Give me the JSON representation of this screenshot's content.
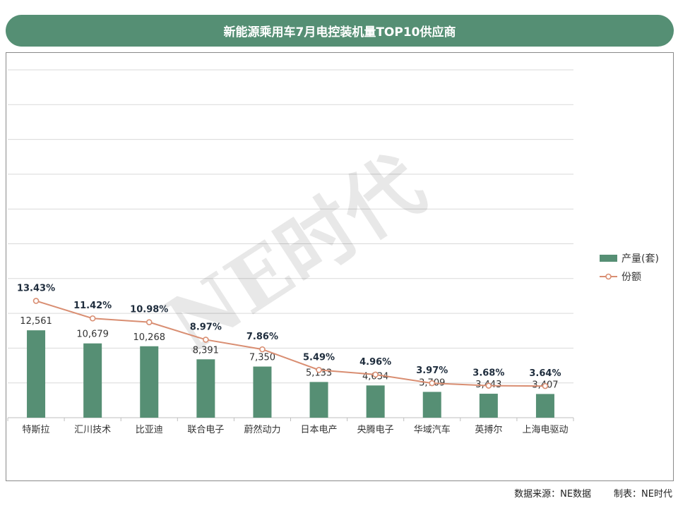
{
  "title": "新能源乘用车7月电控装机量TOP10供应商",
  "watermark": "NE时代",
  "footer": {
    "source": "数据来源：NE数据",
    "maker": "制表：NE时代"
  },
  "colors": {
    "title_bg": "#558f74",
    "bar": "#568f74",
    "line": "#d98e72",
    "marker_fill": "#ffffff",
    "grid": "#d9d9d9",
    "bar_label": "#333333",
    "line_label": "#1f2d3d"
  },
  "chart_data": {
    "type": "bar",
    "title": "新能源乘用车7月电控装机量TOP10供应商",
    "categories": [
      "特斯拉",
      "汇川技术",
      "比亚迪",
      "联合电子",
      "蔚然动力",
      "日本电产",
      "央腾电子",
      "华域汽车",
      "英搏尔",
      "上海电驱动"
    ],
    "series": [
      {
        "name": "产量(套)",
        "type": "bar",
        "values": [
          12561,
          10679,
          10268,
          8391,
          7350,
          5133,
          4634,
          3709,
          3443,
          3407
        ],
        "labels": [
          "12,561",
          "10,679",
          "10,268",
          "8,391",
          "7,350",
          "5,133",
          "4,634",
          "3,709",
          "3,443",
          "3,407"
        ]
      },
      {
        "name": "份额",
        "type": "line",
        "values": [
          13.43,
          11.42,
          10.98,
          8.97,
          7.86,
          5.49,
          4.96,
          3.97,
          3.68,
          3.64
        ],
        "labels": [
          "13.43%",
          "11.42%",
          "10.98%",
          "8.97%",
          "7.86%",
          "5.49%",
          "4.96%",
          "3.97%",
          "3.68%",
          "3.64%"
        ]
      }
    ],
    "ylim": [
      0,
      50000
    ],
    "y2lim": [
      0,
      40
    ],
    "grid": true,
    "legend_position": "right"
  }
}
